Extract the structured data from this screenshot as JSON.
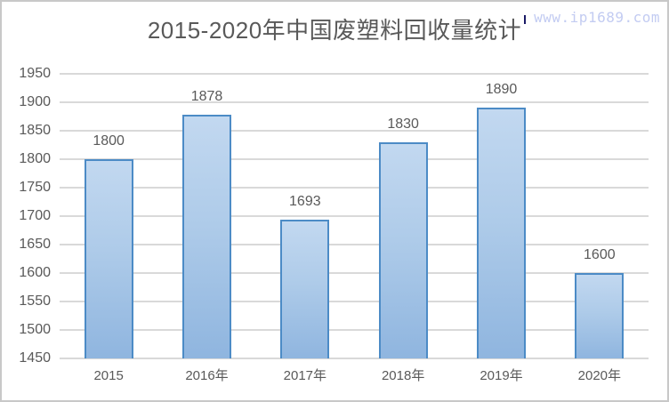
{
  "title": "2015-2020年中国废塑料回收量统计",
  "watermark": {
    "text": "www.ip1689.com"
  },
  "chart_data": {
    "type": "bar",
    "title": "2015-2020年中国废塑料回收量统计",
    "categories": [
      "2015",
      "2016年",
      "2017年",
      "2018年",
      "2019年",
      "2020年"
    ],
    "values": [
      1800,
      1878,
      1693,
      1830,
      1890,
      1600
    ],
    "data_labels": [
      "1800",
      "1878",
      "1693",
      "1830",
      "1890",
      "1600"
    ],
    "xlabel": "",
    "ylabel": "",
    "ylim": [
      1450,
      1950
    ],
    "yticks": [
      1450,
      1500,
      1550,
      1600,
      1650,
      1700,
      1750,
      1800,
      1850,
      1900,
      1950
    ],
    "grid": true,
    "legend": false,
    "colors": {
      "bar_fill_top": "#c2d8f0",
      "bar_fill_bottom": "#8fb5df",
      "bar_border": "#4c8bc6",
      "gridline": "#d9d9d9",
      "text": "#595959",
      "title": "#595959",
      "watermark": "#c3ccf2",
      "frame_border": "#c8c8c8"
    }
  }
}
